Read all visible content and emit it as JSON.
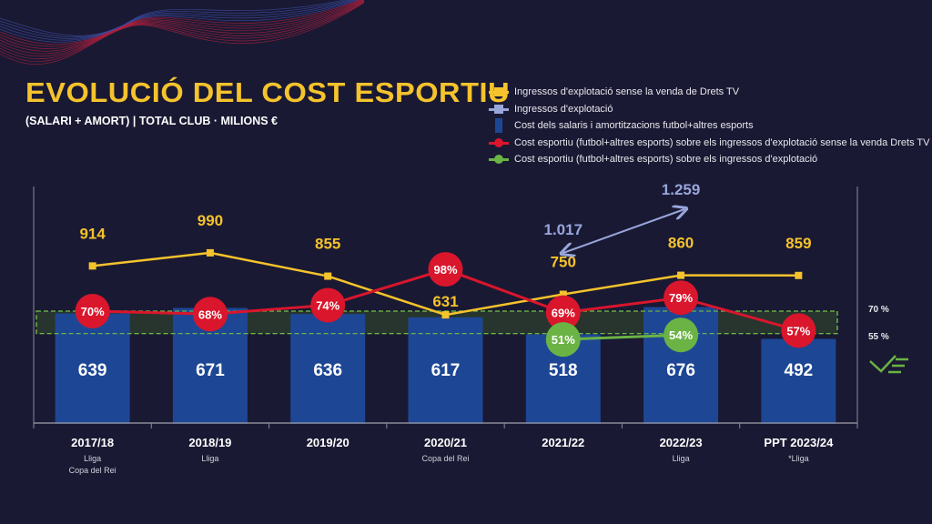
{
  "title": "EVOLUCIÓ DEL COST ESPORTIU",
  "subtitle": "(SALARI + AMORT) | TOTAL CLUB · MILIONS €",
  "legend": [
    {
      "label": "Ingressos d'explotació sense la venda de Drets TV",
      "color": "#f5c32c",
      "marker": "square-line"
    },
    {
      "label": "Ingressos d'explotació",
      "color": "#98a6dc",
      "marker": "square-line"
    },
    {
      "label": "Cost dels salaris i amortitzacions futbol+altres esports",
      "color": "#1d4795",
      "marker": "bar"
    },
    {
      "label": "Cost esportiu (futbol+altres esports) sobre els ingressos d'explotació sense la venda Drets TV",
      "color": "#d9162c",
      "marker": "circle-line"
    },
    {
      "label": "Cost esportiu (futbol+altres esports) sobre els ingressos d'explotació",
      "color": "#6ab344",
      "marker": "circle-line"
    }
  ],
  "reference_band": {
    "low": "55 %",
    "high": "70 %",
    "low_value": 55,
    "high_value": 70,
    "color": "#6ab344"
  },
  "icon": "checkmark-icon",
  "chart_data": {
    "type": "bar+line",
    "title": "EVOLUCIÓ DEL COST ESPORTIU",
    "subtitle": "(SALARI + AMORT) | TOTAL CLUB · MILIONS €",
    "categories": [
      "2017/18",
      "2018/19",
      "2019/20",
      "2020/21",
      "2021/22",
      "2022/23",
      "PPT 2023/24"
    ],
    "category_notes": [
      [
        "Lliga",
        "Copa del Rei"
      ],
      [
        "Lliga"
      ],
      [],
      [
        "Copa del Rei"
      ],
      [],
      [
        "Lliga"
      ],
      [
        "*Lliga"
      ]
    ],
    "series": [
      {
        "name": "Cost dels salaris i amortitzacions futbol+altres esports",
        "type": "bar",
        "color": "#1d4795",
        "values": [
          639,
          671,
          636,
          617,
          518,
          676,
          492
        ],
        "labels": [
          "639",
          "671",
          "636",
          "617",
          "518",
          "676",
          "492"
        ]
      },
      {
        "name": "Ingressos d'explotació sense la venda de Drets TV",
        "type": "line",
        "color": "#f5c32c",
        "values": [
          914,
          990,
          855,
          631,
          750,
          860,
          859
        ],
        "labels": [
          "914",
          "990",
          "855",
          "631",
          "750",
          "860",
          "859"
        ]
      },
      {
        "name": "Ingressos d'explotació",
        "type": "arrow",
        "color": "#98a6dc",
        "values": [
          null,
          null,
          null,
          null,
          1017,
          1259,
          null
        ],
        "labels": [
          "",
          "",
          "",
          "",
          "1.017",
          "1.259",
          ""
        ]
      },
      {
        "name": "Cost esportiu (futbol+altres esports) sobre els ingressos d'explotació sense la venda Drets TV",
        "type": "line-pct",
        "color": "#d9162c",
        "values": [
          70,
          68,
          74,
          98,
          69,
          79,
          57
        ],
        "labels": [
          "70%",
          "68%",
          "74%",
          "98%",
          "69%",
          "79%",
          "57%"
        ]
      },
      {
        "name": "Cost esportiu (futbol+altres esports) sobre els ingressos d'explotació",
        "type": "line-pct",
        "color": "#6ab344",
        "values": [
          null,
          null,
          null,
          null,
          51,
          54,
          null
        ],
        "labels": [
          "",
          "",
          "",
          "",
          "51%",
          "54%",
          ""
        ]
      }
    ],
    "grid": false,
    "legend_position": "top-right"
  }
}
